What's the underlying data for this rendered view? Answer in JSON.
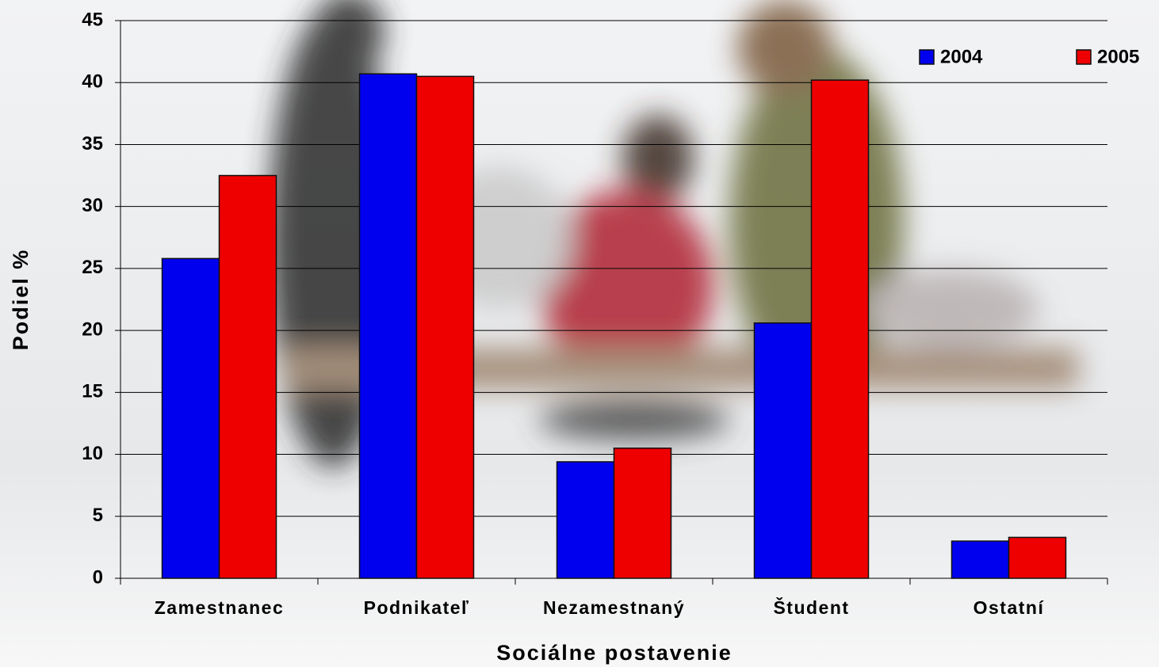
{
  "chart_data": {
    "type": "bar",
    "x_label": "Sociálne postavenie",
    "y_label": "Podiel %",
    "categories": [
      "Zamestnanec",
      "Podnikateľ",
      "Nezamestnaný",
      "Študent",
      "Ostatní"
    ],
    "series": [
      {
        "name": "2004",
        "color": "#0000ee",
        "values": [
          25.8,
          40.7,
          9.4,
          20.6,
          3.0
        ]
      },
      {
        "name": "2005",
        "color": "#ee0000",
        "values": [
          32.5,
          40.5,
          10.5,
          40.2,
          3.3
        ]
      }
    ],
    "ylim": [
      0,
      45
    ],
    "yticks": [
      0,
      5,
      10,
      15,
      20,
      25,
      30,
      35,
      40,
      45
    ],
    "grid": true,
    "legend": "top-right"
  }
}
